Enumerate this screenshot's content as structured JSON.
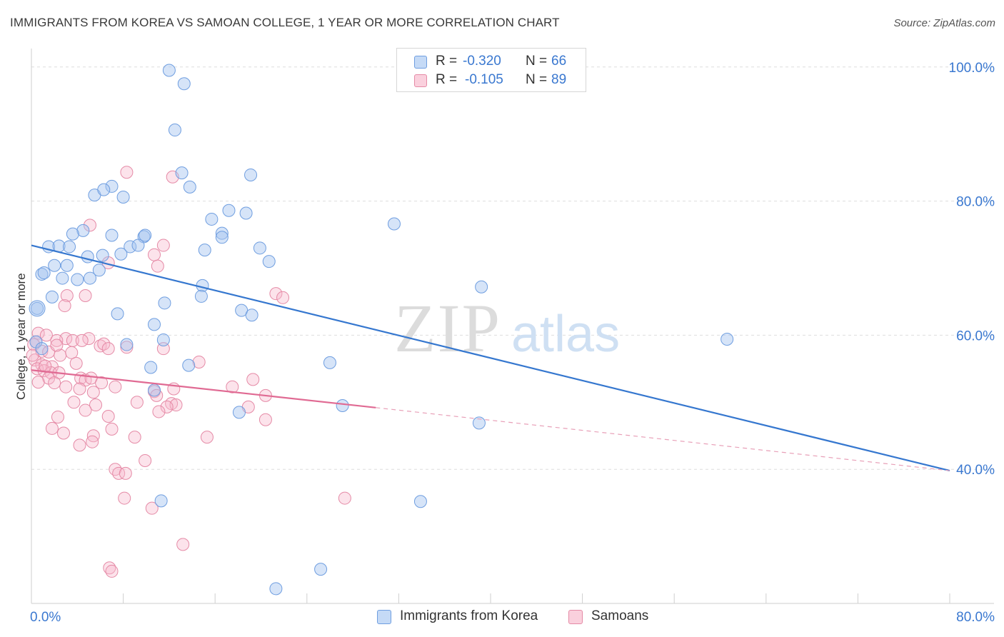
{
  "title": "IMMIGRANTS FROM KOREA VS SAMOAN COLLEGE, 1 YEAR OR MORE CORRELATION CHART",
  "source": "Source: ZipAtlas.com",
  "watermark": {
    "zip": "ZIP",
    "atlas": "atlas"
  },
  "legend": {
    "r_label": "R =",
    "n_label": "N =",
    "rows": [
      {
        "r": "-0.320",
        "n": "66",
        "color": "#a9c8f0",
        "border": "#5b8fd6"
      },
      {
        "r": "-0.105",
        "n": "89",
        "color": "#f7bfd0",
        "border": "#e37f9e"
      }
    ]
  },
  "bottom_legend": [
    {
      "label": "Immigrants from Korea",
      "color": "#c5daf6",
      "border": "#6f9ee0"
    },
    {
      "label": "Samoans",
      "color": "#fad0dd",
      "border": "#e58aa6"
    }
  ],
  "chart_data": {
    "type": "scatter",
    "title": "IMMIGRANTS FROM KOREA VS SAMOAN COLLEGE, 1 YEAR OR MORE CORRELATION CHART",
    "xlabel": "",
    "ylabel": "College, 1 year or more",
    "xlim": [
      0,
      80
    ],
    "ylim": [
      20,
      102
    ],
    "x_tick_labels": [
      "0.0%",
      "80.0%"
    ],
    "y_ticks": [
      40,
      60,
      80,
      100
    ],
    "y_tick_labels": [
      "40.0%",
      "60.0%",
      "80.0%",
      "100.0%"
    ],
    "grid": true,
    "legend_position": "top-center",
    "series": [
      {
        "name": "Immigrants from Korea",
        "color": "#6f9ee0",
        "fill": "rgba(164,196,240,0.45)",
        "trend": {
          "x": [
            0,
            80
          ],
          "y": [
            73.4,
            39.8
          ],
          "color": "#3577cf"
        },
        "points": [
          [
            12.0,
            99.5
          ],
          [
            13.3,
            97.5
          ],
          [
            12.5,
            90.6
          ],
          [
            13.1,
            84.2
          ],
          [
            19.1,
            83.9
          ],
          [
            7.0,
            82.2
          ],
          [
            5.5,
            80.9
          ],
          [
            6.3,
            81.7
          ],
          [
            8.0,
            80.6
          ],
          [
            13.8,
            82.1
          ],
          [
            18.7,
            78.2
          ],
          [
            17.2,
            78.6
          ],
          [
            15.7,
            77.3
          ],
          [
            31.6,
            76.6
          ],
          [
            4.5,
            75.6
          ],
          [
            7.0,
            74.9
          ],
          [
            3.6,
            75.1
          ],
          [
            9.8,
            74.7
          ],
          [
            9.9,
            74.9
          ],
          [
            16.6,
            75.2
          ],
          [
            16.6,
            74.6
          ],
          [
            1.5,
            73.2
          ],
          [
            2.4,
            73.3
          ],
          [
            3.3,
            73.2
          ],
          [
            8.6,
            73.2
          ],
          [
            9.3,
            73.4
          ],
          [
            7.8,
            72.1
          ],
          [
            6.2,
            71.9
          ],
          [
            15.1,
            72.7
          ],
          [
            19.9,
            73.0
          ],
          [
            20.7,
            71.0
          ],
          [
            4.9,
            71.7
          ],
          [
            2.0,
            70.4
          ],
          [
            3.1,
            70.4
          ],
          [
            5.9,
            69.7
          ],
          [
            0.9,
            69.1
          ],
          [
            1.1,
            69.3
          ],
          [
            2.7,
            68.5
          ],
          [
            4.0,
            68.3
          ],
          [
            5.1,
            68.5
          ],
          [
            14.9,
            67.4
          ],
          [
            39.2,
            67.2
          ],
          [
            1.8,
            65.7
          ],
          [
            11.6,
            64.8
          ],
          [
            14.8,
            65.8
          ],
          [
            18.3,
            63.7
          ],
          [
            19.2,
            63.0
          ],
          [
            7.5,
            63.2
          ],
          [
            0.5,
            64.0
          ],
          [
            10.7,
            61.6
          ],
          [
            11.5,
            59.3
          ],
          [
            60.6,
            59.4
          ],
          [
            8.3,
            58.6
          ],
          [
            13.7,
            55.5
          ],
          [
            10.4,
            55.2
          ],
          [
            26.0,
            55.9
          ],
          [
            10.7,
            51.8
          ],
          [
            18.1,
            48.5
          ],
          [
            27.1,
            49.5
          ],
          [
            39.0,
            46.9
          ],
          [
            11.3,
            35.3
          ],
          [
            33.9,
            35.2
          ],
          [
            25.2,
            25.1
          ],
          [
            21.3,
            22.2
          ],
          [
            0.4,
            59.0
          ],
          [
            0.9,
            58.0
          ]
        ]
      },
      {
        "name": "Samoans",
        "color": "#e58aa6",
        "fill": "rgba(247,185,206,0.40)",
        "trend": {
          "x": [
            0,
            30
          ],
          "y": [
            54.8,
            49.2
          ],
          "color": "#e06a93"
        },
        "trend_ext": {
          "x": [
            30,
            80
          ],
          "y": [
            49.2,
            39.8
          ]
        },
        "points": [
          [
            8.3,
            84.3
          ],
          [
            12.3,
            83.6
          ],
          [
            5.1,
            76.4
          ],
          [
            11.5,
            73.4
          ],
          [
            10.7,
            72.0
          ],
          [
            6.7,
            70.8
          ],
          [
            11.0,
            70.3
          ],
          [
            21.3,
            66.2
          ],
          [
            3.1,
            65.9
          ],
          [
            4.7,
            65.9
          ],
          [
            21.9,
            65.6
          ],
          [
            2.9,
            64.4
          ],
          [
            0.6,
            60.3
          ],
          [
            1.3,
            60.0
          ],
          [
            3.0,
            59.5
          ],
          [
            3.6,
            59.2
          ],
          [
            0.4,
            59.0
          ],
          [
            2.2,
            59.2
          ],
          [
            5.0,
            59.5
          ],
          [
            6.0,
            58.4
          ],
          [
            6.3,
            58.7
          ],
          [
            8.3,
            58.2
          ],
          [
            11.5,
            58.0
          ],
          [
            0.2,
            58.6
          ],
          [
            0.9,
            57.6
          ],
          [
            1.5,
            57.5
          ],
          [
            2.5,
            57.0
          ],
          [
            3.5,
            57.4
          ],
          [
            0.3,
            56.3
          ],
          [
            0.9,
            55.6
          ],
          [
            1.8,
            55.3
          ],
          [
            0.5,
            55.0
          ],
          [
            1.1,
            54.7
          ],
          [
            1.7,
            54.4
          ],
          [
            2.4,
            54.4
          ],
          [
            1.5,
            53.6
          ],
          [
            4.3,
            53.6
          ],
          [
            4.7,
            53.3
          ],
          [
            5.2,
            53.6
          ],
          [
            6.1,
            52.9
          ],
          [
            19.3,
            53.4
          ],
          [
            2.0,
            52.9
          ],
          [
            3.0,
            52.3
          ],
          [
            4.2,
            52.0
          ],
          [
            5.4,
            51.5
          ],
          [
            7.3,
            52.3
          ],
          [
            17.5,
            52.3
          ],
          [
            10.7,
            51.6
          ],
          [
            10.9,
            51.0
          ],
          [
            20.4,
            51.0
          ],
          [
            3.7,
            50.0
          ],
          [
            5.6,
            49.6
          ],
          [
            9.2,
            50.0
          ],
          [
            12.2,
            49.8
          ],
          [
            12.6,
            49.6
          ],
          [
            11.8,
            49.3
          ],
          [
            11.1,
            48.6
          ],
          [
            4.7,
            48.8
          ],
          [
            18.9,
            49.3
          ],
          [
            2.3,
            47.8
          ],
          [
            6.7,
            47.9
          ],
          [
            20.4,
            47.4
          ],
          [
            1.8,
            46.1
          ],
          [
            7.0,
            46.0
          ],
          [
            2.8,
            45.4
          ],
          [
            5.4,
            45.0
          ],
          [
            9.0,
            44.8
          ],
          [
            15.3,
            44.8
          ],
          [
            4.2,
            43.6
          ],
          [
            5.3,
            44.1
          ],
          [
            9.9,
            41.3
          ],
          [
            7.3,
            40.0
          ],
          [
            7.6,
            39.4
          ],
          [
            8.2,
            39.4
          ],
          [
            8.1,
            35.7
          ],
          [
            27.3,
            35.7
          ],
          [
            10.5,
            34.2
          ],
          [
            13.2,
            28.8
          ],
          [
            6.8,
            25.3
          ],
          [
            7.0,
            24.8
          ],
          [
            0.1,
            57.0
          ],
          [
            0.6,
            53.0
          ],
          [
            2.2,
            58.5
          ],
          [
            3.9,
            55.8
          ],
          [
            4.4,
            59.2
          ],
          [
            1.2,
            55.4
          ],
          [
            6.7,
            58.0
          ],
          [
            12.4,
            52.0
          ],
          [
            14.6,
            56.0
          ]
        ]
      }
    ]
  }
}
